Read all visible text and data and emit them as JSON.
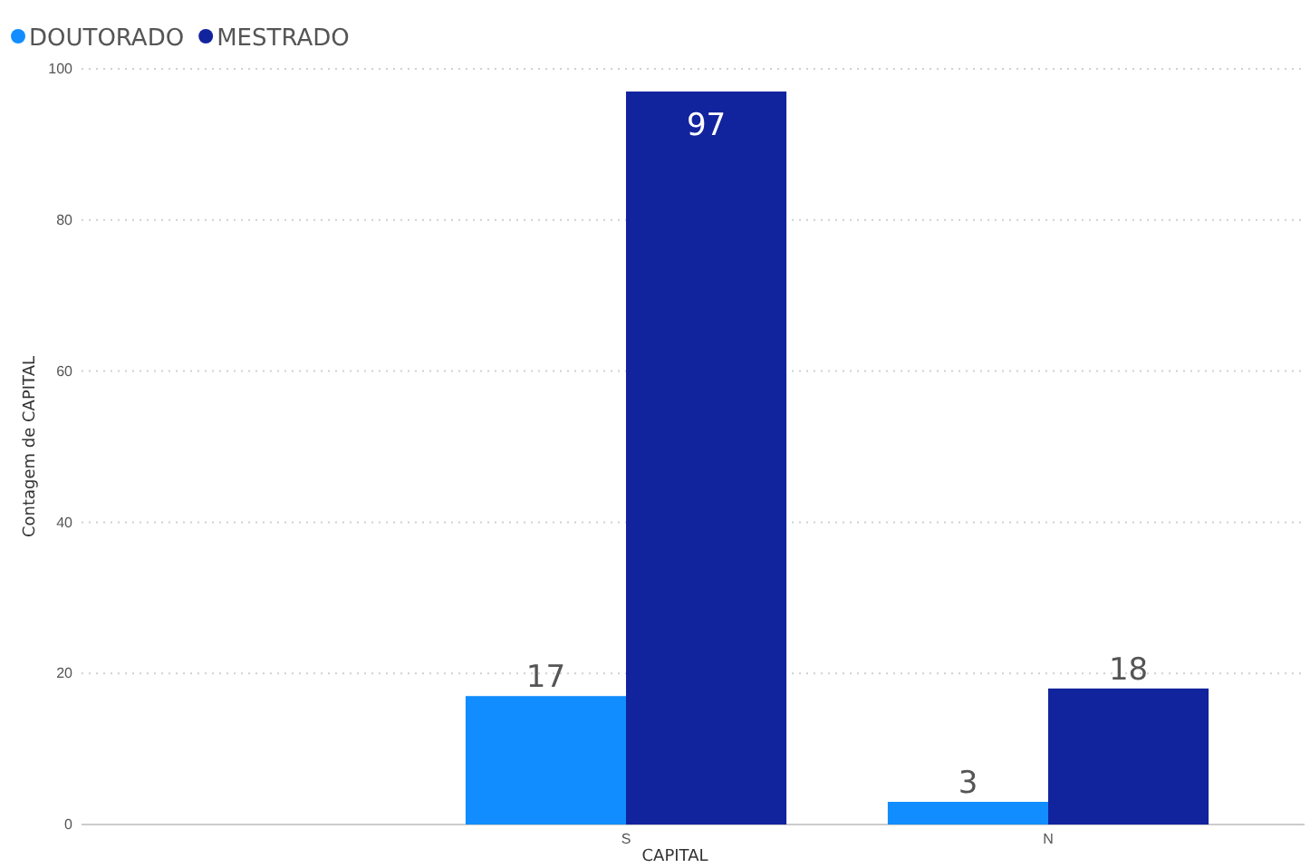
{
  "chart_data": {
    "type": "bar",
    "xlabel": "CAPITAL",
    "ylabel": "Contagem de CAPITAL",
    "categories": [
      null,
      "S",
      "N"
    ],
    "series": [
      {
        "name": "DOUTORADO",
        "color": "#118dff",
        "values": [
          null,
          17,
          3
        ]
      },
      {
        "name": "MESTRADO",
        "color": "#12239e",
        "values": [
          null,
          97,
          18
        ]
      }
    ],
    "ylim": [
      0,
      100
    ],
    "yticks": [
      0,
      20,
      40,
      60,
      80,
      100
    ],
    "grid": "y",
    "legend": "top left",
    "data_labels": true
  }
}
